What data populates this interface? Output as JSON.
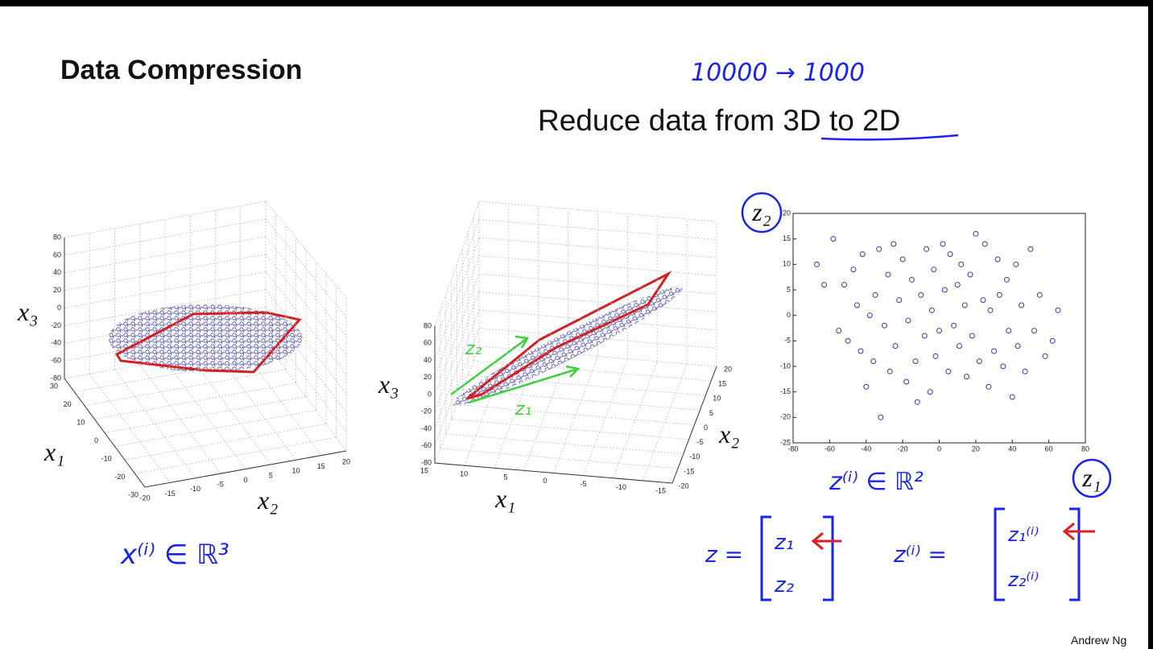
{
  "title": "Data Compression",
  "subtitle": "Reduce data from 3D to 2D",
  "note_top": "10000 → 1000",
  "footer": "Andrew Ng",
  "plot_left": {
    "zlabel": "x₃",
    "x1label": "x₁",
    "x2label": "x₂",
    "zticks": [
      80,
      60,
      40,
      20,
      0,
      -20,
      -40,
      -60,
      -80
    ],
    "x1ticks": [
      30,
      20,
      10,
      0,
      -10,
      -20,
      -30
    ],
    "x2ticks": [
      -20,
      -15,
      -10,
      -5,
      0,
      5,
      10,
      15,
      20
    ],
    "note": "x⁽ⁱ⁾ ∈ ℝ³"
  },
  "plot_middle": {
    "zlabel": "x₃",
    "x1label": "x₁",
    "x2label": "x₂",
    "zticks": [
      80,
      60,
      40,
      20,
      0,
      -20,
      -40,
      -60,
      -80
    ],
    "x1ticks": [
      15,
      10,
      5,
      0,
      -5,
      -10,
      -15
    ],
    "x2ticks": [
      20,
      15,
      10,
      5,
      0,
      -5,
      -10,
      -15,
      -20
    ],
    "arrow_labels": [
      "z₂",
      "z₁"
    ]
  },
  "chart_data": {
    "type": "scatter",
    "color": "#3a3aa8",
    "ylabel": "z₂",
    "xlabel": "z₁",
    "annotation": "z⁽ⁱ⁾ ∈ ℝ²",
    "x": [
      -67,
      -63,
      -58,
      -55,
      -52,
      -50,
      -47,
      -45,
      -43,
      -42,
      -40,
      -38,
      -36,
      -35,
      -33,
      -32,
      -30,
      -28,
      -27,
      -25,
      -24,
      -22,
      -20,
      -18,
      -17,
      -15,
      -13,
      -12,
      -10,
      -8,
      -7,
      -5,
      -4,
      -3,
      -2,
      0,
      2,
      3,
      5,
      6,
      8,
      10,
      11,
      12,
      14,
      15,
      17,
      18,
      20,
      22,
      24,
      25,
      27,
      28,
      30,
      32,
      33,
      35,
      37,
      38,
      40,
      42,
      43,
      45,
      47,
      50,
      52,
      55,
      58,
      62,
      65
    ],
    "values": [
      10,
      6,
      15,
      -3,
      6,
      -5,
      9,
      2,
      -7,
      12,
      -14,
      0,
      -9,
      4,
      13,
      -20,
      -2,
      8,
      -11,
      14,
      -6,
      3,
      11,
      -13,
      -1,
      7,
      -9,
      -17,
      4,
      -4,
      13,
      -15,
      1,
      9,
      -8,
      -3,
      14,
      5,
      -11,
      12,
      -2,
      6,
      -6,
      10,
      2,
      -12,
      8,
      -4,
      16,
      -9,
      3,
      14,
      -14,
      1,
      -7,
      11,
      4,
      -10,
      7,
      -3,
      -16,
      10,
      -6,
      2,
      -11,
      13,
      -3,
      4,
      -8,
      -5,
      1
    ],
    "xlim": [
      -80,
      80
    ],
    "xticks": [
      -80,
      -60,
      -40,
      -20,
      0,
      20,
      40,
      60,
      80
    ],
    "ylim": [
      -25,
      20
    ],
    "yticks": [
      -25,
      -20,
      -15,
      -10,
      -5,
      0,
      5,
      10,
      15,
      20
    ]
  },
  "matrices": [
    {
      "lhs": "z =",
      "rows": [
        "z₁",
        "z₂"
      ]
    },
    {
      "lhs": "z⁽ⁱ⁾ =",
      "rows": [
        "z₁⁽ⁱ⁾",
        "z₂⁽ⁱ⁾"
      ]
    }
  ]
}
